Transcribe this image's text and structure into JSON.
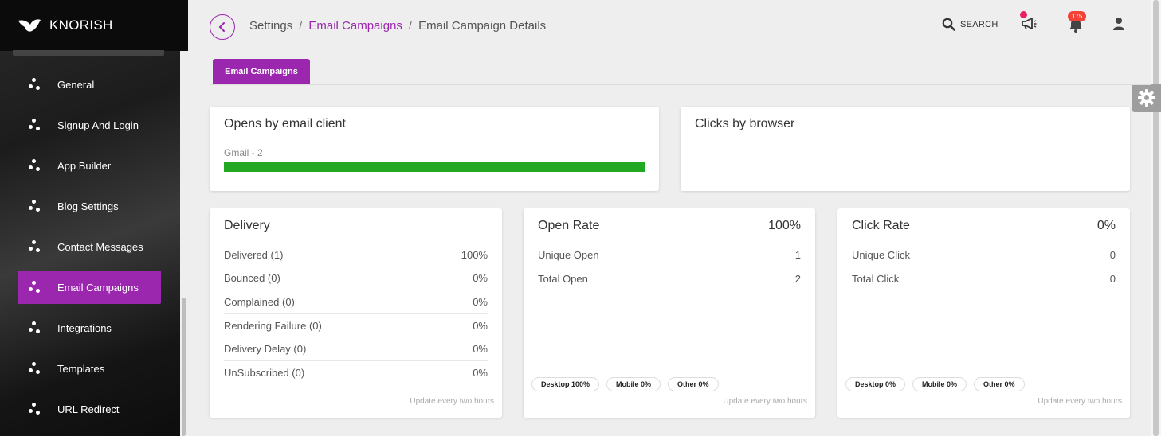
{
  "sidebar": {
    "brand": "KNORISH",
    "items": [
      {
        "label": "General",
        "active": false
      },
      {
        "label": "Signup And Login",
        "active": false
      },
      {
        "label": "App Builder",
        "active": false
      },
      {
        "label": "Blog Settings",
        "active": false
      },
      {
        "label": "Contact Messages",
        "active": false
      },
      {
        "label": "Email Campaigns",
        "active": true
      },
      {
        "label": "Integrations",
        "active": false
      },
      {
        "label": "Templates",
        "active": false
      },
      {
        "label": "URL Redirect",
        "active": false
      }
    ]
  },
  "header": {
    "breadcrumb": [
      "Settings",
      "Email Campaigns",
      "Email Campaign Details"
    ],
    "search_label": "SEARCH",
    "notification_count": "175"
  },
  "tab": {
    "label": "Email Campaigns"
  },
  "opens_by_client": {
    "title": "Opens by email client",
    "bar_label": "Gmail - 2",
    "bar_fraction": 1.0
  },
  "clicks_by_browser": {
    "title": "Clicks by browser"
  },
  "delivery": {
    "title": "Delivery",
    "rows": [
      {
        "label": "Delivered (1)",
        "value": "100%"
      },
      {
        "label": "Bounced (0)",
        "value": "0%"
      },
      {
        "label": "Complained (0)",
        "value": "0%"
      },
      {
        "label": "Rendering Failure (0)",
        "value": "0%"
      },
      {
        "label": "Delivery Delay (0)",
        "value": "0%"
      },
      {
        "label": "UnSubscribed (0)",
        "value": "0%"
      }
    ],
    "note": "Update every two hours"
  },
  "open_rate": {
    "title": "Open Rate",
    "value": "100%",
    "rows": [
      {
        "label": "Unique Open",
        "value": "1"
      },
      {
        "label": "Total Open",
        "value": "2"
      }
    ],
    "chips": [
      "Desktop 100%",
      "Mobile 0%",
      "Other 0%"
    ],
    "note": "Update every two hours"
  },
  "click_rate": {
    "title": "Click Rate",
    "value": "0%",
    "rows": [
      {
        "label": "Unique Click",
        "value": "0"
      },
      {
        "label": "Total Click",
        "value": "0"
      }
    ],
    "chips": [
      "Desktop 0%",
      "Mobile 0%",
      "Other 0%"
    ],
    "note": "Update every two hours"
  },
  "colors": {
    "accent": "#9b27af",
    "bar": "#22a822",
    "badge": "#f44336"
  }
}
